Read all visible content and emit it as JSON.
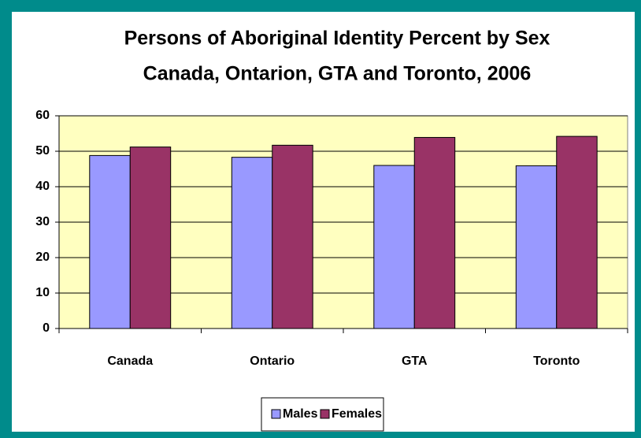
{
  "chart_data": {
    "type": "bar",
    "title": "Persons of Aboriginal Identity Percent by Sex",
    "subtitle": "Canada, Ontarion, GTA and Toronto, 2006",
    "categories": [
      "Canada",
      "Ontario",
      "GTA",
      "Toronto"
    ],
    "series": [
      {
        "name": "Males",
        "color": "#9999ff",
        "values": [
          48.8,
          48.3,
          46.0,
          45.9
        ]
      },
      {
        "name": "Females",
        "color": "#993366",
        "values": [
          51.2,
          51.7,
          53.9,
          54.2
        ]
      }
    ],
    "ylim": [
      0,
      60
    ],
    "yticks": [
      0,
      10,
      20,
      30,
      40,
      50,
      60
    ],
    "grid": true,
    "plot_background": "#ffffc0",
    "legend": "bottom"
  }
}
